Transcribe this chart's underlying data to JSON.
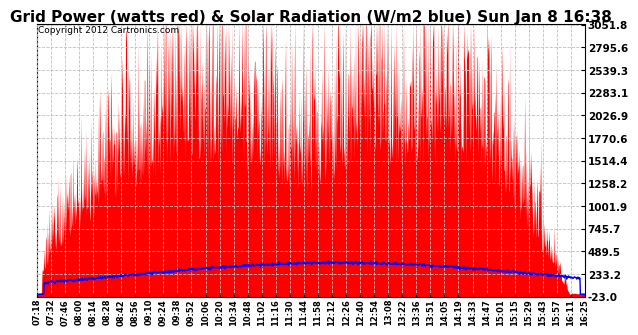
{
  "title": "Grid Power (watts red) & Solar Radiation (W/m2 blue) Sun Jan 8 16:38",
  "copyright_text": "Copyright 2012 Cartronics.com",
  "background_color": "#ffffff",
  "plot_bg_color": "#ffffff",
  "grid_color": "#c0c0c0",
  "yticks": [
    -23.0,
    233.2,
    489.5,
    745.7,
    1001.9,
    1258.2,
    1514.4,
    1770.6,
    2026.9,
    2283.1,
    2539.3,
    2795.6,
    3051.8
  ],
  "ymin": -23.0,
  "ymax": 3051.8,
  "red_color": "#ff0000",
  "blue_color": "#0000ff",
  "title_fontsize": 11,
  "copyright_fontsize": 6.5,
  "ytick_fontsize": 7.5,
  "xtick_fontsize": 6,
  "xtick_labels": [
    "07:18",
    "07:32",
    "07:46",
    "08:00",
    "08:14",
    "08:28",
    "08:42",
    "08:56",
    "09:10",
    "09:24",
    "09:38",
    "09:52",
    "10:06",
    "10:20",
    "10:34",
    "10:48",
    "11:02",
    "11:16",
    "11:30",
    "11:44",
    "11:58",
    "12:12",
    "12:26",
    "12:40",
    "12:54",
    "13:08",
    "13:22",
    "13:36",
    "13:51",
    "14:05",
    "14:19",
    "14:33",
    "14:47",
    "15:01",
    "15:15",
    "15:29",
    "15:43",
    "15:57",
    "16:11",
    "16:25"
  ]
}
